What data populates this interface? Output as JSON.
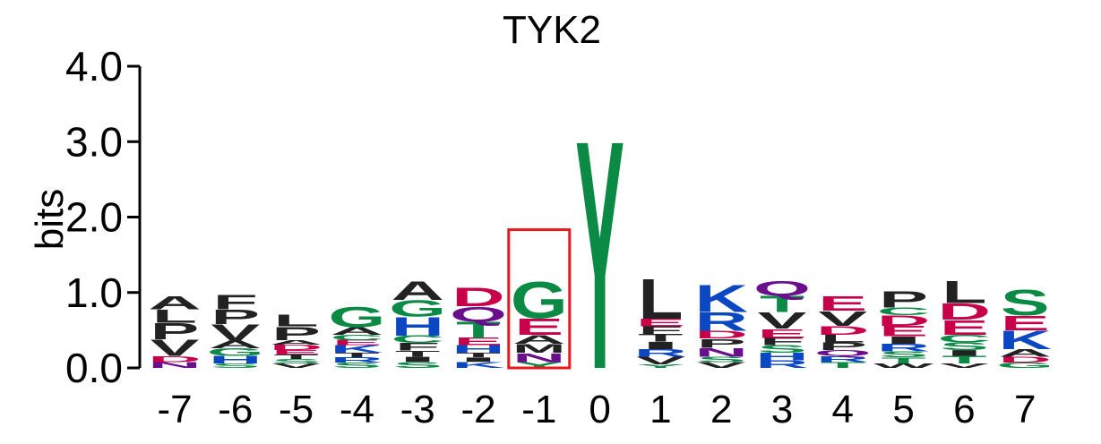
{
  "chart_data": {
    "type": "sequence-logo",
    "title": "TYK2",
    "ylabel": "bits",
    "ylim": [
      0,
      4
    ],
    "yticks": [
      "0.0",
      "1.0",
      "2.0",
      "3.0",
      "4.0"
    ],
    "highlight_position": "-1",
    "colors": {
      "black": "#222222",
      "green": "#0a8a45",
      "blue": "#0b47c2",
      "red": "#c8004a",
      "purple": "#6a0e8e",
      "highlight": "#e8191c"
    },
    "positions": [
      {
        "label": "-7",
        "stack": [
          [
            "N",
            "purple",
            0.08
          ],
          [
            "D",
            "red",
            0.08
          ],
          [
            "V",
            "black",
            0.22
          ],
          [
            "P",
            "black",
            0.22
          ],
          [
            "L",
            "black",
            0.18
          ],
          [
            "A",
            "black",
            0.18
          ]
        ]
      },
      {
        "label": "-6",
        "stack": [
          [
            "S",
            "green",
            0.06
          ],
          [
            "H",
            "blue",
            0.1
          ],
          [
            "G",
            "green",
            0.1
          ],
          [
            "A",
            "black",
            0.1
          ],
          [
            "V",
            "black",
            0.22
          ],
          [
            "P",
            "black",
            0.2
          ],
          [
            "F",
            "black",
            0.2
          ]
        ]
      },
      {
        "label": "-5",
        "stack": [
          [
            "V",
            "black",
            0.06
          ],
          [
            "S",
            "green",
            0.06
          ],
          [
            "T",
            "black",
            0.06
          ],
          [
            "E",
            "red",
            0.06
          ],
          [
            "D",
            "red",
            0.07
          ],
          [
            "A",
            "black",
            0.06
          ],
          [
            "P",
            "black",
            0.18
          ],
          [
            "L",
            "black",
            0.16
          ]
        ]
      },
      {
        "label": "-4",
        "stack": [
          [
            "S",
            "green",
            0.07
          ],
          [
            "R",
            "blue",
            0.07
          ],
          [
            "T",
            "black",
            0.06
          ],
          [
            "K",
            "blue",
            0.1
          ],
          [
            "E",
            "red",
            0.07
          ],
          [
            "C",
            "green",
            0.07
          ],
          [
            "A",
            "black",
            0.1
          ],
          [
            "G",
            "green",
            0.28
          ]
        ]
      },
      {
        "label": "-3",
        "stack": [
          [
            "S",
            "green",
            0.08
          ],
          [
            "I",
            "black",
            0.07
          ],
          [
            "T",
            "black",
            0.08
          ],
          [
            "F",
            "black",
            0.1
          ],
          [
            "C",
            "green",
            0.1
          ],
          [
            "H",
            "blue",
            0.25
          ],
          [
            "G",
            "green",
            0.22
          ],
          [
            "A",
            "black",
            0.25
          ]
        ]
      },
      {
        "label": "-2",
        "stack": [
          [
            "K",
            "blue",
            0.08
          ],
          [
            "I",
            "black",
            0.06
          ],
          [
            "T",
            "black",
            0.06
          ],
          [
            "H",
            "blue",
            0.1
          ],
          [
            "E",
            "red",
            0.1
          ],
          [
            "T",
            "green",
            0.22
          ],
          [
            "Q",
            "purple",
            0.2
          ],
          [
            "D",
            "red",
            0.25
          ]
        ]
      },
      {
        "label": "-1",
        "stack": [
          [
            "Y",
            "green",
            0.08
          ],
          [
            "N",
            "purple",
            0.12
          ],
          [
            "M",
            "black",
            0.12
          ],
          [
            "A",
            "black",
            0.12
          ],
          [
            "E",
            "red",
            0.22
          ],
          [
            "G",
            "green",
            0.5
          ]
        ]
      },
      {
        "label": "0",
        "stack": [
          [
            "Y",
            "green",
            3.12
          ]
        ]
      },
      {
        "label": "1",
        "stack": [
          [
            "Y",
            "green",
            0.05
          ],
          [
            "V",
            "black",
            0.1
          ],
          [
            "R",
            "blue",
            0.1
          ],
          [
            "I",
            "black",
            0.1
          ],
          [
            "T",
            "black",
            0.1
          ],
          [
            "F",
            "black",
            0.1
          ],
          [
            "E",
            "red",
            0.1
          ],
          [
            "L",
            "black",
            0.55
          ]
        ]
      },
      {
        "label": "2",
        "stack": [
          [
            "V",
            "black",
            0.08
          ],
          [
            "S",
            "green",
            0.07
          ],
          [
            "N",
            "purple",
            0.12
          ],
          [
            "P",
            "black",
            0.12
          ],
          [
            "D",
            "red",
            0.1
          ],
          [
            "R",
            "blue",
            0.25
          ],
          [
            "K",
            "blue",
            0.37
          ]
        ]
      },
      {
        "label": "3",
        "stack": [
          [
            "R",
            "blue",
            0.1
          ],
          [
            "H",
            "blue",
            0.1
          ],
          [
            "S",
            "green",
            0.1
          ],
          [
            "F",
            "black",
            0.1
          ],
          [
            "E",
            "red",
            0.12
          ],
          [
            "V",
            "black",
            0.22
          ],
          [
            "T",
            "green",
            0.22
          ],
          [
            "Q",
            "purple",
            0.2
          ]
        ]
      },
      {
        "label": "4",
        "stack": [
          [
            "T",
            "green",
            0.08
          ],
          [
            "R",
            "blue",
            0.08
          ],
          [
            "Q",
            "purple",
            0.08
          ],
          [
            "P",
            "black",
            0.1
          ],
          [
            "L",
            "black",
            0.1
          ],
          [
            "D",
            "red",
            0.12
          ],
          [
            "V",
            "black",
            0.2
          ],
          [
            "E",
            "red",
            0.2
          ]
        ]
      },
      {
        "label": "5",
        "stack": [
          [
            "W",
            "black",
            0.06
          ],
          [
            "T",
            "green",
            0.08
          ],
          [
            "S",
            "green",
            0.08
          ],
          [
            "R",
            "blue",
            0.1
          ],
          [
            "I",
            "black",
            0.1
          ],
          [
            "E",
            "red",
            0.14
          ],
          [
            "D",
            "red",
            0.14
          ],
          [
            "C",
            "green",
            0.1
          ],
          [
            "P",
            "black",
            0.22
          ]
        ]
      },
      {
        "label": "6",
        "stack": [
          [
            "V",
            "black",
            0.06
          ],
          [
            "T",
            "green",
            0.1
          ],
          [
            "I",
            "black",
            0.08
          ],
          [
            "S",
            "green",
            0.1
          ],
          [
            "C",
            "green",
            0.1
          ],
          [
            "E",
            "red",
            0.2
          ],
          [
            "D",
            "red",
            0.22
          ],
          [
            "L",
            "black",
            0.3
          ]
        ]
      },
      {
        "label": "7",
        "stack": [
          [
            "G",
            "green",
            0.07
          ],
          [
            "D",
            "red",
            0.08
          ],
          [
            "A",
            "black",
            0.1
          ],
          [
            "K",
            "blue",
            0.25
          ],
          [
            "E",
            "red",
            0.2
          ],
          [
            "S",
            "green",
            0.35
          ]
        ]
      }
    ]
  }
}
